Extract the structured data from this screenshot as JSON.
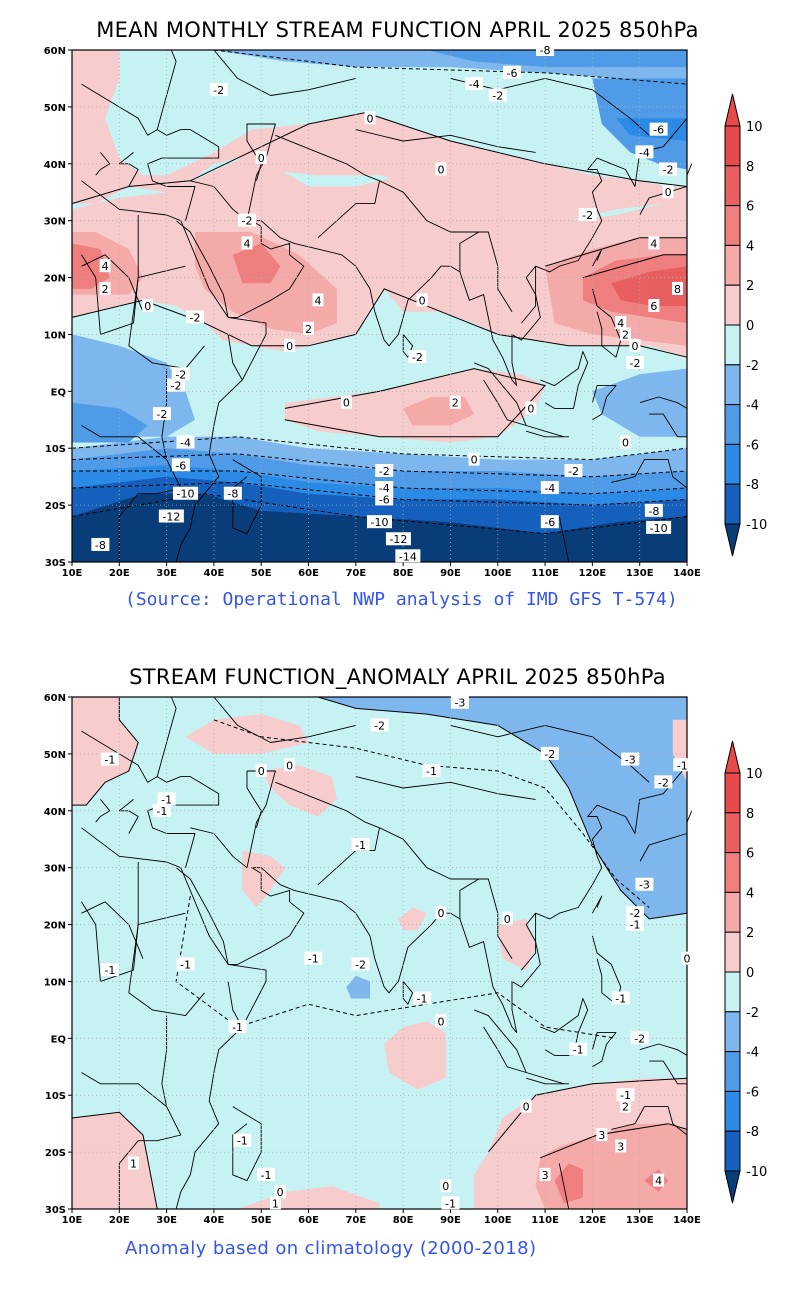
{
  "colors": {
    "n10": "#083d7a",
    "n8": "#1560bd",
    "n6": "#2b8ae6",
    "n4": "#4f9be8",
    "n2": "#7eb6ee",
    "n0": "#c6f2f4",
    "p0": "#f7cccc",
    "p2": "#f5aaaa",
    "p4": "#ef7e7e",
    "p6": "#e85f5f",
    "p8": "#e84a4a",
    "caption": "#3355ee"
  },
  "panels": [
    {
      "title": "MEAN MONTHLY STREAM FUNCTION APRIL 2025 850hPa",
      "caption": "(Source: Operational NWP analysis of IMD GFS T-574)",
      "contour_labels": [
        {
          "t": "-8",
          "lon": 110,
          "lat": 60
        },
        {
          "t": "-6",
          "lon": 103,
          "lat": 56
        },
        {
          "t": "-4",
          "lon": 95,
          "lat": 54
        },
        {
          "t": "-2",
          "lon": 100,
          "lat": 52
        },
        {
          "t": "-2",
          "lon": 41,
          "lat": 53
        },
        {
          "t": "0",
          "lon": 73,
          "lat": 48
        },
        {
          "t": "-6",
          "lon": 134,
          "lat": 46
        },
        {
          "t": "-4",
          "lon": 131,
          "lat": 42
        },
        {
          "t": "-2",
          "lon": 136,
          "lat": 39
        },
        {
          "t": "0",
          "lon": 136,
          "lat": 35
        },
        {
          "t": "0",
          "lon": 50,
          "lat": 41
        },
        {
          "t": "0",
          "lon": 88,
          "lat": 39
        },
        {
          "t": "-2",
          "lon": 47,
          "lat": 30
        },
        {
          "t": "4",
          "lon": 47,
          "lat": 26
        },
        {
          "t": "-2",
          "lon": 119,
          "lat": 31
        },
        {
          "t": "4",
          "lon": 133,
          "lat": 26
        },
        {
          "t": "4",
          "lon": 17,
          "lat": 22
        },
        {
          "t": "2",
          "lon": 17,
          "lat": 18
        },
        {
          "t": "0",
          "lon": 26,
          "lat": 15
        },
        {
          "t": "-2",
          "lon": 36,
          "lat": 13
        },
        {
          "t": "4",
          "lon": 62,
          "lat": 16
        },
        {
          "t": "0",
          "lon": 84,
          "lat": 16
        },
        {
          "t": "8",
          "lon": 138,
          "lat": 18
        },
        {
          "t": "6",
          "lon": 133,
          "lat": 15
        },
        {
          "t": "4",
          "lon": 126,
          "lat": 12
        },
        {
          "t": "2",
          "lon": 60,
          "lat": 11
        },
        {
          "t": "2",
          "lon": 127,
          "lat": 10
        },
        {
          "t": "0",
          "lon": 56,
          "lat": 8
        },
        {
          "t": "0",
          "lon": 129,
          "lat": 8
        },
        {
          "t": "-2",
          "lon": 83,
          "lat": 6
        },
        {
          "t": "-2",
          "lon": 129,
          "lat": 5
        },
        {
          "t": "-2",
          "lon": 33,
          "lat": 3
        },
        {
          "t": "-2",
          "lon": 32,
          "lat": 1
        },
        {
          "t": "-2",
          "lon": 29,
          "lat": -4
        },
        {
          "t": "0",
          "lon": 68,
          "lat": -2
        },
        {
          "t": "2",
          "lon": 91,
          "lat": -2
        },
        {
          "t": "0",
          "lon": 107,
          "lat": -3
        },
        {
          "t": "-4",
          "lon": 34,
          "lat": -9
        },
        {
          "t": "0",
          "lon": 127,
          "lat": -9
        },
        {
          "t": "0",
          "lon": 95,
          "lat": -12
        },
        {
          "t": "-6",
          "lon": 33,
          "lat": -13
        },
        {
          "t": "-2",
          "lon": 76,
          "lat": -14
        },
        {
          "t": "-2",
          "lon": 116,
          "lat": -14
        },
        {
          "t": "-4",
          "lon": 76,
          "lat": -17
        },
        {
          "t": "-4",
          "lon": 111,
          "lat": -17
        },
        {
          "t": "-6",
          "lon": 76,
          "lat": -19
        },
        {
          "t": "-10",
          "lon": 34,
          "lat": -18
        },
        {
          "t": "-8",
          "lon": 44,
          "lat": -18
        },
        {
          "t": "-12",
          "lon": 31,
          "lat": -22
        },
        {
          "t": "-6",
          "lon": 111,
          "lat": -23
        },
        {
          "t": "-10",
          "lon": 75,
          "lat": -23
        },
        {
          "t": "-8",
          "lon": 133,
          "lat": -21
        },
        {
          "t": "-10",
          "lon": 134,
          "lat": -24
        },
        {
          "t": "-12",
          "lon": 79,
          "lat": -26
        },
        {
          "t": "-8",
          "lon": 16,
          "lat": -27
        },
        {
          "t": "-14",
          "lon": 81,
          "lat": -29
        }
      ]
    },
    {
      "title": "STREAM FUNCTION_ANOMALY APRIL 2025 850hPa",
      "caption": "Anomaly based on climatology (2000-2018)",
      "contour_labels": [
        {
          "t": "-3",
          "lon": 92,
          "lat": 59
        },
        {
          "t": "-2",
          "lon": 75,
          "lat": 55
        },
        {
          "t": "-1",
          "lon": 18,
          "lat": 49
        },
        {
          "t": "0",
          "lon": 50,
          "lat": 47
        },
        {
          "t": "0",
          "lon": 56,
          "lat": 48
        },
        {
          "t": "-1",
          "lon": 86,
          "lat": 47
        },
        {
          "t": "-2",
          "lon": 111,
          "lat": 50
        },
        {
          "t": "-3",
          "lon": 128,
          "lat": 49
        },
        {
          "t": "-1",
          "lon": 139,
          "lat": 48
        },
        {
          "t": "-2",
          "lon": 135,
          "lat": 45
        },
        {
          "t": "-1",
          "lon": 30,
          "lat": 42
        },
        {
          "t": "-1",
          "lon": 29,
          "lat": 40
        },
        {
          "t": "-1",
          "lon": 71,
          "lat": 34
        },
        {
          "t": "-3",
          "lon": 131,
          "lat": 27
        },
        {
          "t": "-2",
          "lon": 129,
          "lat": 22
        },
        {
          "t": "-1",
          "lon": 129,
          "lat": 20
        },
        {
          "t": "0",
          "lon": 88,
          "lat": 22
        },
        {
          "t": "0",
          "lon": 102,
          "lat": 21
        },
        {
          "t": "-1",
          "lon": 18,
          "lat": 12
        },
        {
          "t": "-1",
          "lon": 34,
          "lat": 13
        },
        {
          "t": "-1",
          "lon": 61,
          "lat": 14
        },
        {
          "t": "-2",
          "lon": 71,
          "lat": 13
        },
        {
          "t": "0",
          "lon": 140,
          "lat": 14
        },
        {
          "t": "-1",
          "lon": 84,
          "lat": 7
        },
        {
          "t": "-1",
          "lon": 126,
          "lat": 7
        },
        {
          "t": "-1",
          "lon": 45,
          "lat": 2
        },
        {
          "t": "0",
          "lon": 88,
          "lat": 3
        },
        {
          "t": "-2",
          "lon": 130,
          "lat": 0
        },
        {
          "t": "-1",
          "lon": 117,
          "lat": -2
        },
        {
          "t": "-1",
          "lon": 127,
          "lat": -10
        },
        {
          "t": "0",
          "lon": 106,
          "lat": -12
        },
        {
          "t": "2",
          "lon": 127,
          "lat": -12
        },
        {
          "t": "-1",
          "lon": 46,
          "lat": -18
        },
        {
          "t": "3",
          "lon": 122,
          "lat": -17
        },
        {
          "t": "3",
          "lon": 126,
          "lat": -19
        },
        {
          "t": "1",
          "lon": 23,
          "lat": -22
        },
        {
          "t": "-1",
          "lon": 51,
          "lat": -24
        },
        {
          "t": "3",
          "lon": 110,
          "lat": -24
        },
        {
          "t": "4",
          "lon": 134,
          "lat": -25
        },
        {
          "t": "0",
          "lon": 89,
          "lat": -26
        },
        {
          "t": "0",
          "lon": 54,
          "lat": -27
        },
        {
          "t": "1",
          "lon": 53,
          "lat": -29
        },
        {
          "t": "-1",
          "lon": 90,
          "lat": -29
        }
      ]
    }
  ],
  "lon_ticks": [
    "10E",
    "20E",
    "30E",
    "40E",
    "50E",
    "60E",
    "70E",
    "80E",
    "90E",
    "100E",
    "110E",
    "120E",
    "130E",
    "140E"
  ],
  "lat_ticks": [
    "60N",
    "50N",
    "40N",
    "30N",
    "20N",
    "10N",
    "EQ",
    "10S",
    "20S",
    "30S"
  ],
  "colorbar_labels": [
    "10",
    "8",
    "6",
    "4",
    "2",
    "0",
    "-2",
    "-4",
    "-6",
    "-8",
    "-10"
  ]
}
